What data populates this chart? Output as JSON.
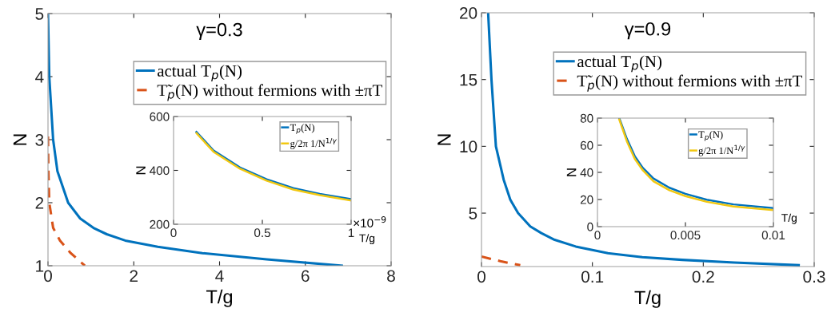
{
  "chart_data": [
    {
      "type": "line",
      "title": "γ=0.3",
      "xlabel": "T/g",
      "ylabel": "N",
      "xlim": [
        0,
        8
      ],
      "xticks": [
        0,
        2,
        4,
        6,
        8
      ],
      "ylim": [
        1,
        5
      ],
      "yticks": [
        1,
        2,
        3,
        4,
        5
      ],
      "grid": false,
      "legend": "top right",
      "marker": "none",
      "series": [
        {
          "name": "actual T$_{p}$(N)",
          "color": "#0072bd",
          "line_style": "solid",
          "x": [
            0.0,
            0.03,
            0.12,
            0.22,
            0.47,
            0.75,
            1.06,
            1.37,
            1.8,
            2.56,
            3.6,
            5.1,
            6.85
          ],
          "values": [
            5,
            4,
            3,
            2.5,
            2,
            1.75,
            1.6,
            1.5,
            1.4,
            1.3,
            1.2,
            1.1,
            1.0
          ]
        },
        {
          "name": "T̃$_{p}$(N) without fermions with ±πT",
          "color": "#d95319",
          "line_style": "dashed",
          "x": [
            0.0,
            0.01,
            0.03,
            0.12,
            0.28,
            0.53,
            0.86
          ],
          "values": [
            3.05,
            2.5,
            2,
            1.6,
            1.4,
            1.2,
            1.0
          ]
        }
      ]
    },
    {
      "type": "line",
      "xlabel": "T/g",
      "ylabel": "N",
      "xlim": [
        0,
        1
      ],
      "xticks": [
        0,
        0.5,
        1
      ],
      "ylim": [
        200,
        600
      ],
      "yticks": [
        200,
        400,
        600
      ],
      "grid": false,
      "legend": "top right",
      "marker": "none",
      "annotations": [
        "×10$^{−9}$"
      ],
      "series": [
        {
          "name": "T$_{p}$(N)",
          "color": "#0072bd",
          "line_style": "solid",
          "x": [
            0.129,
            0.225,
            0.374,
            0.524,
            0.674,
            0.823,
            1.0
          ],
          "values": [
            543,
            474,
            411,
            367,
            334,
            313,
            293
          ]
        },
        {
          "name": "g/2π 1/N$^{1/γ}$",
          "color": "#f2c811",
          "line_style": "solid",
          "x": [
            0.129,
            0.225,
            0.374,
            0.524,
            0.674,
            0.823,
            1.0
          ],
          "values": [
            538,
            469,
            406,
            362,
            329,
            308,
            288
          ]
        }
      ]
    },
    {
      "type": "line",
      "title": "γ=0.9",
      "xlabel": "T/g",
      "ylabel": "N",
      "xlim": [
        0,
        0.3
      ],
      "xticks": [
        0,
        0.1,
        0.2,
        0.3
      ],
      "ylim": [
        1,
        20
      ],
      "yticks": [
        5,
        10,
        15,
        20
      ],
      "grid": false,
      "legend": "top right",
      "marker": "none",
      "series": [
        {
          "name": "actual T$_{p}$(N)",
          "color": "#0072bd",
          "line_style": "solid",
          "x": [
            0.006,
            0.009,
            0.013,
            0.02,
            0.026,
            0.033,
            0.044,
            0.054,
            0.066,
            0.085,
            0.114,
            0.145,
            0.181,
            0.228,
            0.286
          ],
          "values": [
            20,
            15,
            10,
            7.5,
            6,
            5,
            4,
            3.5,
            3,
            2.5,
            2,
            1.7,
            1.5,
            1.3,
            1.1
          ]
        },
        {
          "name": "T̃$_{p}$(N) without fermions with ±πT",
          "color": "#d95319",
          "line_style": "dashed",
          "x": [
            0.0,
            0.017,
            0.035
          ],
          "values": [
            1.75,
            1.4,
            1.1
          ]
        }
      ]
    },
    {
      "type": "line",
      "xlabel": "T/g",
      "ylabel": "N",
      "xlim": [
        0,
        0.01
      ],
      "xticks": [
        0,
        0.005,
        0.01
      ],
      "ylim": [
        0,
        80
      ],
      "yticks": [
        0,
        20,
        40,
        60,
        80
      ],
      "grid": false,
      "legend": "top right",
      "marker": "none",
      "series": [
        {
          "name": "T$_{p}$(N)",
          "color": "#0072bd",
          "line_style": "solid",
          "x": [
            0.00124,
            0.00167,
            0.00212,
            0.00258,
            0.00318,
            0.00409,
            0.005,
            0.00621,
            0.00773,
            0.01
          ],
          "values": [
            80,
            64.8,
            52,
            43.3,
            35.5,
            28.7,
            24.2,
            19.9,
            16.4,
            13.7
          ]
        },
        {
          "name": "g/2π 1/N$^{1/γ}$",
          "color": "#f2c811",
          "line_style": "solid",
          "x": [
            0.00124,
            0.00167,
            0.00212,
            0.00258,
            0.00318,
            0.00409,
            0.005,
            0.00621,
            0.00773,
            0.01
          ],
          "values": [
            79,
            63,
            50,
            41.5,
            33.5,
            26.8,
            22.5,
            18.3,
            14.9,
            12.2
          ]
        }
      ]
    }
  ]
}
